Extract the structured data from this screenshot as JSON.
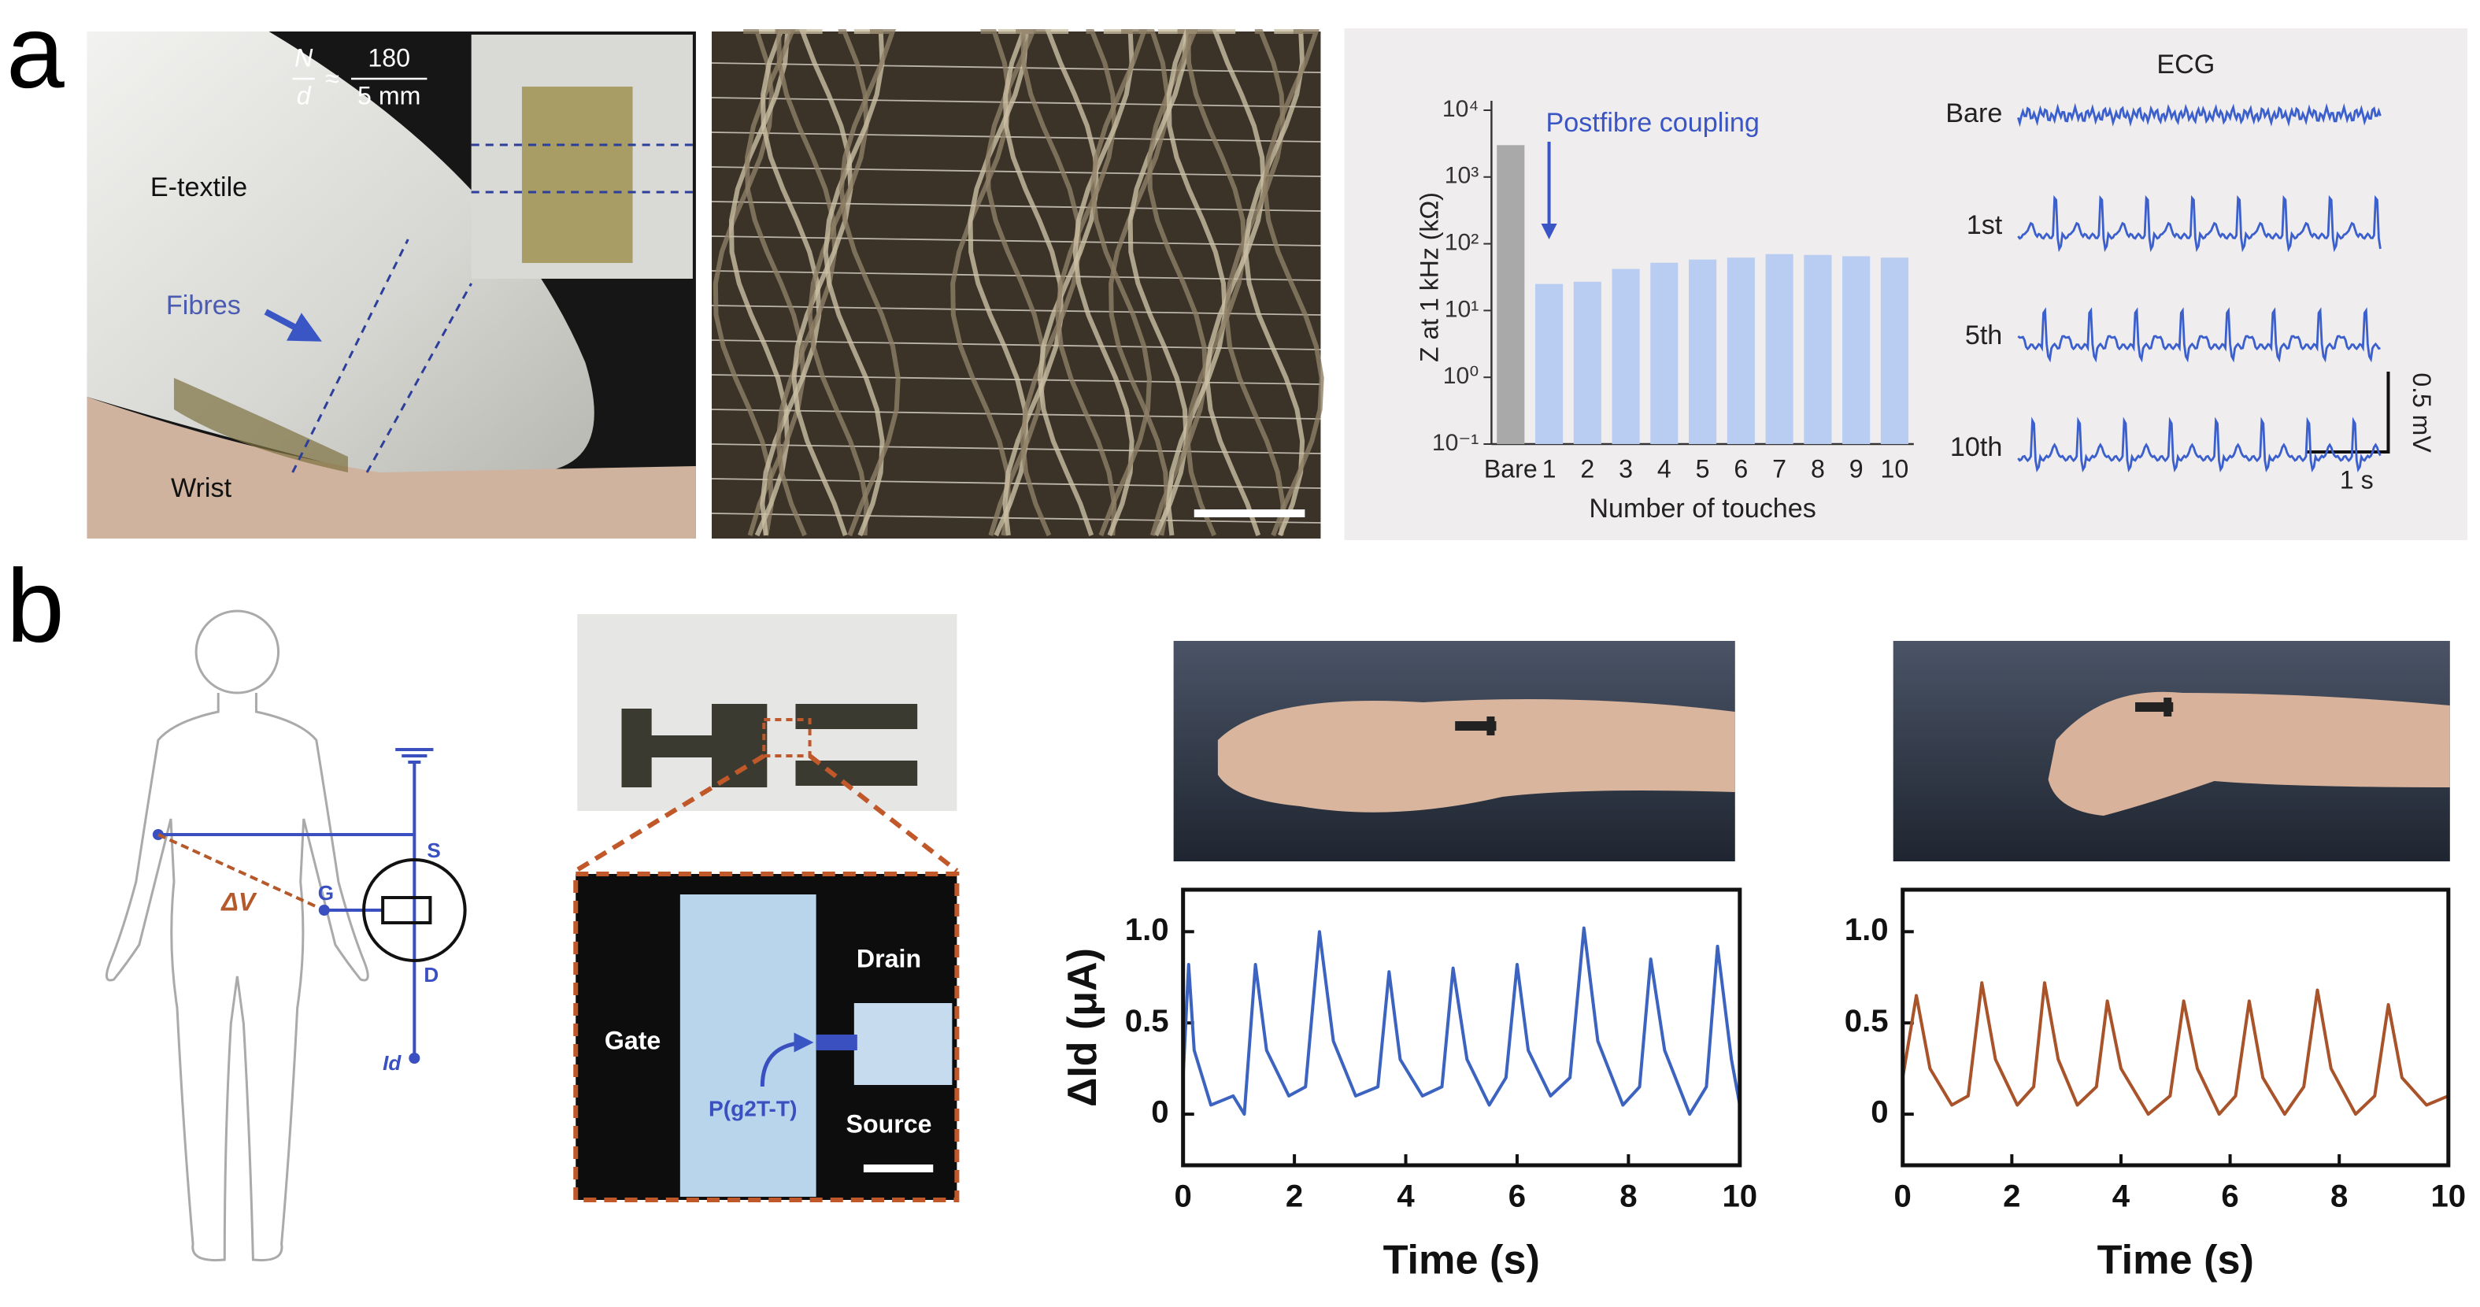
{
  "panel_labels": [
    "a",
    "b"
  ],
  "textile_photo": {
    "formula": {
      "lhs_numerator": "N",
      "lhs_denominator": "d",
      "relation": "≈",
      "rhs_numerator": "180",
      "rhs_denominator": "5 mm"
    },
    "labels": {
      "etextile": "E-textile",
      "fibres": "Fibres",
      "wrist": "Wrist"
    }
  },
  "ecg": {
    "title": "ECG",
    "traces": [
      "Bare",
      "1st",
      "5th",
      "10th"
    ],
    "scale_voltage": "0.5 mV",
    "scale_time": "1 s"
  },
  "circuit": {
    "delta_v": "ΔV",
    "source": "S",
    "gate": "G",
    "drain": "D",
    "current": "Id"
  },
  "device": {
    "gate": "Gate",
    "drain": "Drain",
    "source": "Source",
    "channel": "P(g2T-T)"
  },
  "chart_data": [
    {
      "type": "bar",
      "categories": [
        "Bare",
        "1",
        "2",
        "3",
        "4",
        "5",
        "6",
        "7",
        "8",
        "9",
        "10"
      ],
      "values": [
        3000,
        25,
        27,
        42,
        52,
        58,
        62,
        70,
        68,
        65,
        62
      ],
      "colors": [
        "#a9a9a9",
        "#b9cdf2",
        "#b9cdf2",
        "#b9cdf2",
        "#b9cdf2",
        "#b9cdf2",
        "#b9cdf2",
        "#b9cdf2",
        "#b9cdf2",
        "#b9cdf2",
        "#b9cdf2"
      ],
      "log_scale": true,
      "ylim": [
        0.1,
        10000
      ],
      "yticks": [
        {
          "value": 0.1,
          "label": "10⁻¹"
        },
        {
          "value": 1,
          "label": "10⁰"
        },
        {
          "value": 10,
          "label": "10¹"
        },
        {
          "value": 100,
          "label": "10²"
        },
        {
          "value": 1000,
          "label": "10³"
        },
        {
          "value": 10000,
          "label": "10⁴"
        }
      ],
      "ylabel": "Z at 1 kHz (kΩ)",
      "xlabel": "Number of touches",
      "annotation": "Postfibre coupling"
    },
    {
      "type": "line",
      "color": "#3c63c0",
      "x": [
        0,
        0.1,
        0.2,
        0.5,
        0.9,
        1.1,
        1.3,
        1.5,
        1.9,
        2.2,
        2.45,
        2.7,
        3.1,
        3.5,
        3.7,
        3.9,
        4.3,
        4.65,
        4.85,
        5.1,
        5.5,
        5.8,
        6.0,
        6.2,
        6.6,
        6.95,
        7.2,
        7.45,
        7.9,
        8.2,
        8.4,
        8.65,
        9.1,
        9.4,
        9.6,
        9.85,
        10
      ],
      "values": [
        0.2,
        0.82,
        0.35,
        0.05,
        0.1,
        0.0,
        0.82,
        0.35,
        0.1,
        0.15,
        1.0,
        0.4,
        0.1,
        0.15,
        0.78,
        0.3,
        0.1,
        0.15,
        0.8,
        0.3,
        0.05,
        0.2,
        0.82,
        0.35,
        0.1,
        0.2,
        1.02,
        0.4,
        0.05,
        0.15,
        0.85,
        0.35,
        0.0,
        0.15,
        0.92,
        0.3,
        0.05
      ],
      "xlim": [
        0,
        10
      ],
      "ylim": [
        -0.28,
        1.23
      ],
      "xticks": [
        0,
        2,
        4,
        6,
        8,
        10
      ],
      "yticks": [
        0,
        0.5,
        {
          "value": 1,
          "label": "1.0"
        }
      ],
      "xlabel": "Time (s)",
      "ylabel": "ΔId (μA)"
    },
    {
      "type": "line",
      "color": "#a9532a",
      "x": [
        0,
        0.25,
        0.5,
        0.9,
        1.2,
        1.45,
        1.7,
        2.1,
        2.4,
        2.6,
        2.85,
        3.2,
        3.55,
        3.75,
        4.0,
        4.5,
        4.9,
        5.15,
        5.4,
        5.8,
        6.1,
        6.35,
        6.6,
        7.0,
        7.35,
        7.6,
        7.85,
        8.3,
        8.65,
        8.9,
        9.15,
        9.6,
        10
      ],
      "values": [
        0.2,
        0.65,
        0.25,
        0.05,
        0.1,
        0.72,
        0.3,
        0.05,
        0.15,
        0.72,
        0.3,
        0.05,
        0.15,
        0.62,
        0.25,
        0.0,
        0.1,
        0.62,
        0.25,
        0.0,
        0.1,
        0.62,
        0.2,
        0.0,
        0.15,
        0.68,
        0.25,
        0.0,
        0.1,
        0.6,
        0.2,
        0.05,
        0.1
      ],
      "xlim": [
        0,
        10
      ],
      "ylim": [
        -0.28,
        1.23
      ],
      "xticks": [
        0,
        2,
        4,
        6,
        8,
        10
      ],
      "yticks": [
        0,
        0.5,
        {
          "value": 1,
          "label": "1.0"
        }
      ],
      "xlabel": "Time (s)"
    }
  ]
}
